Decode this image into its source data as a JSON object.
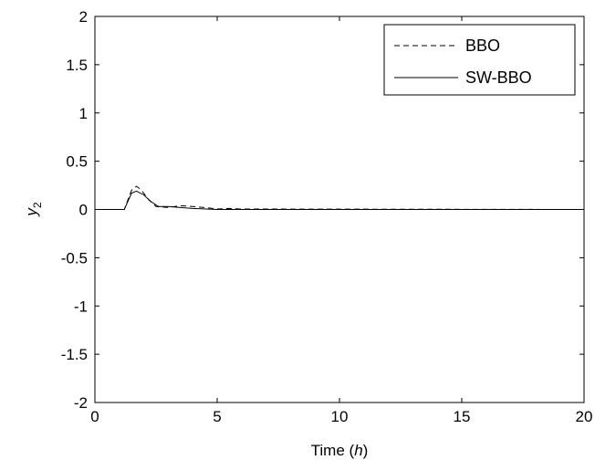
{
  "chart_data": {
    "type": "line",
    "title": "",
    "xlabel": {
      "prefix": "Time (",
      "var": "h",
      "suffix": ")"
    },
    "ylabel": {
      "base": "y",
      "sub": "2"
    },
    "xlim": [
      0,
      20
    ],
    "ylim": [
      -2,
      2
    ],
    "xticks": [
      "0",
      "5",
      "10",
      "15",
      "20"
    ],
    "yticks": [
      "2",
      "1.5",
      "1",
      "0.5",
      "0",
      "-0.5",
      "-1",
      "-1.5",
      "-2"
    ],
    "grid": false,
    "legend_position": "top-right",
    "series": [
      {
        "name": "BBO",
        "style": "dashed",
        "color": "#000000",
        "x": [
          0,
          1.2,
          1.5,
          1.7,
          1.9,
          2.2,
          2.5,
          3.0,
          3.5,
          4.0,
          4.5,
          5.0,
          5.5,
          6.0,
          20
        ],
        "y": [
          0,
          0,
          0.2,
          0.24,
          0.2,
          0.1,
          0.03,
          0.02,
          0.04,
          0.03,
          0.02,
          0.005,
          0.01,
          0.005,
          0
        ]
      },
      {
        "name": "SW-BBO",
        "style": "solid",
        "color": "#000000",
        "x": [
          0,
          1.2,
          1.5,
          1.7,
          2.0,
          2.3,
          2.6,
          3.0,
          3.5,
          4.0,
          5.0,
          20
        ],
        "y": [
          0,
          0,
          0.17,
          0.19,
          0.15,
          0.08,
          0.03,
          0.03,
          0.02,
          0.01,
          0.0,
          0
        ]
      }
    ]
  }
}
